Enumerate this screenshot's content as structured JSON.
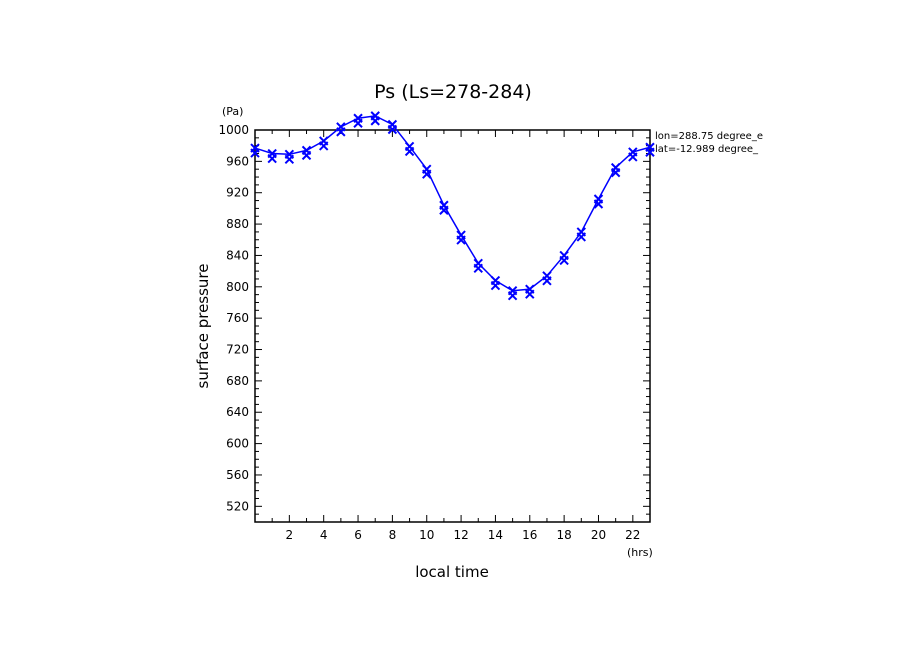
{
  "chart_data": {
    "type": "line",
    "title": "Ps (Ls=278-284)",
    "xlabel": "local time",
    "ylabel": "surface pressure",
    "x_unit": "(hrs)",
    "y_unit": "(Pa)",
    "xlim": [
      0,
      23
    ],
    "ylim": [
      500,
      1000
    ],
    "x_ticks": [
      "2",
      "4",
      "6",
      "8",
      "10",
      "12",
      "14",
      "16",
      "18",
      "20",
      "22"
    ],
    "y_ticks": [
      "1000",
      "960",
      "920",
      "880",
      "840",
      "800",
      "760",
      "720",
      "680",
      "640",
      "600",
      "560",
      "520"
    ],
    "annotations": [
      "lon=288.75 degree_e",
      "lat=-12.989 degree_"
    ],
    "grid": false,
    "marker": "x",
    "color": "#0000ff",
    "series": [
      {
        "x": [
          0,
          1,
          2,
          3,
          4,
          5,
          6,
          7,
          8,
          9,
          10,
          11,
          12,
          13,
          14,
          15,
          16,
          17,
          18,
          19,
          20,
          21,
          22,
          23
        ],
        "y": [
          977,
          970,
          969,
          974,
          986,
          1004,
          1015,
          1018,
          1007,
          979,
          950,
          904,
          866,
          830,
          808,
          795,
          797,
          814,
          840,
          870,
          912,
          952,
          972,
          978
        ]
      }
    ]
  }
}
